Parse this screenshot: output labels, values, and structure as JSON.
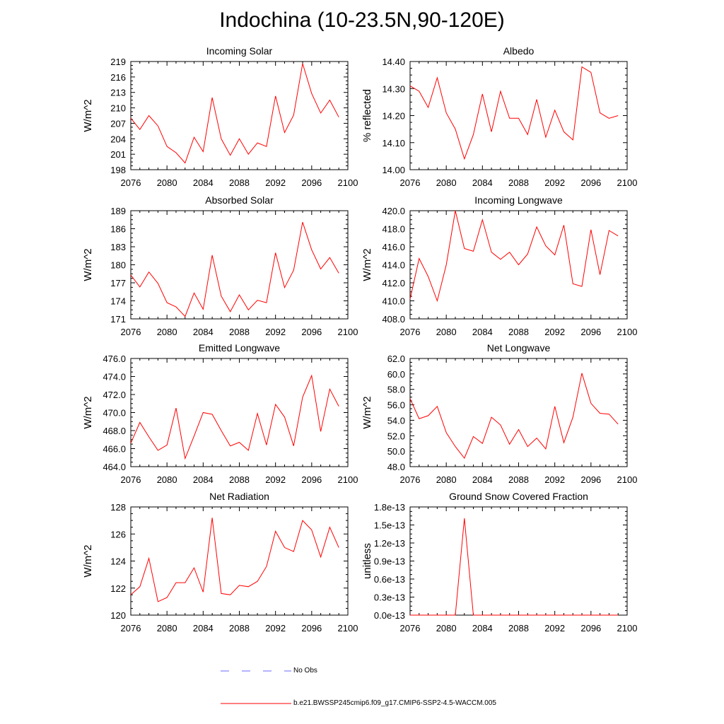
{
  "page": {
    "title": "Indochina (10-23.5N,90-120E)"
  },
  "legend": {
    "obs_label": "No Obs",
    "obs_color": "#6a6aff",
    "model_label": "b.e21.BWSSP245cmip6.f09_g17.CMIP6-SSP2-4.5-WACCM.005",
    "model_color": "#ff0000"
  },
  "chart_data": [
    {
      "type": "line",
      "title": "Incoming Solar",
      "xlabel": "",
      "ylabel": "W/m^2",
      "xlim": [
        2076,
        2100
      ],
      "ylim": [
        198,
        219
      ],
      "xticks": [
        2076,
        2080,
        2084,
        2088,
        2092,
        2096,
        2100
      ],
      "xtick_labels": [
        "2076",
        "2080",
        "2084",
        "2088",
        "2092",
        "2096",
        "2100"
      ],
      "yticks": [
        198,
        201,
        204,
        207,
        210,
        213,
        216,
        219
      ],
      "ytick_labels": [
        "198",
        "201",
        "204",
        "207",
        "210",
        "213",
        "216",
        "219"
      ],
      "x": [
        2076,
        2077,
        2078,
        2079,
        2080,
        2081,
        2082,
        2083,
        2084,
        2085,
        2086,
        2087,
        2088,
        2089,
        2090,
        2091,
        2092,
        2093,
        2094,
        2095,
        2096,
        2097,
        2098,
        2099
      ],
      "series": [
        {
          "name": "b.e21.BWSSP245cmip6.f09_g17.CMIP6-SSP2-4.5-WACCM.005",
          "values": [
            208.0,
            205.8,
            208.5,
            206.5,
            202.5,
            201.3,
            199.3,
            204.3,
            201.5,
            212.0,
            204.0,
            200.8,
            204.0,
            201.0,
            203.2,
            202.5,
            212.3,
            205.2,
            208.6,
            218.6,
            212.8,
            209.0,
            211.5,
            208.2
          ]
        }
      ]
    },
    {
      "type": "line",
      "title": "Albedo",
      "xlabel": "",
      "ylabel": "% reflected",
      "xlim": [
        2076,
        2100
      ],
      "ylim": [
        14.0,
        14.4
      ],
      "xticks": [
        2076,
        2080,
        2084,
        2088,
        2092,
        2096,
        2100
      ],
      "xtick_labels": [
        "2076",
        "2080",
        "2084",
        "2088",
        "2092",
        "2096",
        "2100"
      ],
      "yticks": [
        14.0,
        14.1,
        14.2,
        14.3,
        14.4
      ],
      "ytick_labels": [
        "14.00",
        "14.10",
        "14.20",
        "14.30",
        "14.40"
      ],
      "x": [
        2076,
        2077,
        2078,
        2079,
        2080,
        2081,
        2082,
        2083,
        2084,
        2085,
        2086,
        2087,
        2088,
        2089,
        2090,
        2091,
        2092,
        2093,
        2094,
        2095,
        2096,
        2097,
        2098,
        2099
      ],
      "series": [
        {
          "name": "b.e21.BWSSP245cmip6.f09_g17.CMIP6-SSP2-4.5-WACCM.005",
          "values": [
            14.31,
            14.29,
            14.23,
            14.34,
            14.21,
            14.15,
            14.04,
            14.13,
            14.28,
            14.14,
            14.29,
            14.19,
            14.19,
            14.13,
            14.26,
            14.12,
            14.22,
            14.14,
            14.11,
            14.38,
            14.36,
            14.21,
            14.19,
            14.2
          ]
        }
      ]
    },
    {
      "type": "line",
      "title": "Absorbed Solar",
      "xlabel": "",
      "ylabel": "W/m^2",
      "xlim": [
        2076,
        2100
      ],
      "ylim": [
        171,
        189
      ],
      "xticks": [
        2076,
        2080,
        2084,
        2088,
        2092,
        2096,
        2100
      ],
      "xtick_labels": [
        "2076",
        "2080",
        "2084",
        "2088",
        "2092",
        "2096",
        "2100"
      ],
      "yticks": [
        171,
        174,
        177,
        180,
        183,
        186,
        189
      ],
      "ytick_labels": [
        "171",
        "174",
        "177",
        "180",
        "183",
        "186",
        "189"
      ],
      "x": [
        2076,
        2077,
        2078,
        2079,
        2080,
        2081,
        2082,
        2083,
        2084,
        2085,
        2086,
        2087,
        2088,
        2089,
        2090,
        2091,
        2092,
        2093,
        2094,
        2095,
        2096,
        2097,
        2098,
        2099
      ],
      "series": [
        {
          "name": "b.e21.BWSSP245cmip6.f09_g17.CMIP6-SSP2-4.5-WACCM.005",
          "values": [
            178.3,
            176.3,
            178.8,
            176.9,
            173.7,
            173.0,
            171.4,
            175.3,
            172.6,
            181.6,
            174.8,
            172.2,
            175.0,
            172.5,
            174.1,
            173.7,
            182.0,
            176.2,
            179.1,
            187.1,
            182.5,
            179.3,
            181.2,
            178.6
          ]
        }
      ]
    },
    {
      "type": "line",
      "title": "Incoming Longwave",
      "xlabel": "",
      "ylabel": "W/m^2",
      "xlim": [
        2076,
        2100
      ],
      "ylim": [
        408.0,
        420.0
      ],
      "xticks": [
        2076,
        2080,
        2084,
        2088,
        2092,
        2096,
        2100
      ],
      "xtick_labels": [
        "2076",
        "2080",
        "2084",
        "2088",
        "2092",
        "2096",
        "2100"
      ],
      "yticks": [
        408,
        410,
        412,
        414,
        416,
        418,
        420
      ],
      "ytick_labels": [
        "408.0",
        "410.0",
        "412.0",
        "414.0",
        "416.0",
        "418.0",
        "420.0"
      ],
      "x": [
        2076,
        2077,
        2078,
        2079,
        2080,
        2081,
        2082,
        2083,
        2084,
        2085,
        2086,
        2087,
        2088,
        2089,
        2090,
        2091,
        2092,
        2093,
        2094,
        2095,
        2096,
        2097,
        2098,
        2099
      ],
      "series": [
        {
          "name": "b.e21.BWSSP245cmip6.f09_g17.CMIP6-SSP2-4.5-WACCM.005",
          "values": [
            410.2,
            414.7,
            412.7,
            410.0,
            414.0,
            420.0,
            415.8,
            415.5,
            419.0,
            415.4,
            414.6,
            415.4,
            414.0,
            415.2,
            418.2,
            416.1,
            415.1,
            418.4,
            411.9,
            411.6,
            417.9,
            412.9,
            417.8,
            417.2
          ]
        }
      ]
    },
    {
      "type": "line",
      "title": "Emitted Longwave",
      "xlabel": "",
      "ylabel": "W/m^2",
      "xlim": [
        2076,
        2100
      ],
      "ylim": [
        464.0,
        476.0
      ],
      "xticks": [
        2076,
        2080,
        2084,
        2088,
        2092,
        2096,
        2100
      ],
      "xtick_labels": [
        "2076",
        "2080",
        "2084",
        "2088",
        "2092",
        "2096",
        "2100"
      ],
      "yticks": [
        464,
        466,
        468,
        470,
        472,
        474,
        476
      ],
      "ytick_labels": [
        "464.0",
        "466.0",
        "468.0",
        "470.0",
        "472.0",
        "474.0",
        "476.0"
      ],
      "x": [
        2076,
        2077,
        2078,
        2079,
        2080,
        2081,
        2082,
        2083,
        2084,
        2085,
        2086,
        2087,
        2088,
        2089,
        2090,
        2091,
        2092,
        2093,
        2094,
        2095,
        2096,
        2097,
        2098,
        2099
      ],
      "series": [
        {
          "name": "b.e21.BWSSP245cmip6.f09_g17.CMIP6-SSP2-4.5-WACCM.005",
          "values": [
            466.6,
            468.9,
            467.3,
            465.8,
            466.4,
            470.5,
            464.9,
            467.4,
            470.0,
            469.8,
            468.0,
            466.3,
            466.7,
            465.8,
            469.9,
            466.4,
            470.9,
            469.5,
            466.3,
            471.7,
            474.1,
            467.9,
            472.6,
            470.7
          ]
        }
      ]
    },
    {
      "type": "line",
      "title": "Net Longwave",
      "xlabel": "",
      "ylabel": "W/m^2",
      "xlim": [
        2076,
        2100
      ],
      "ylim": [
        48.0,
        62.0
      ],
      "xticks": [
        2076,
        2080,
        2084,
        2088,
        2092,
        2096,
        2100
      ],
      "xtick_labels": [
        "2076",
        "2080",
        "2084",
        "2088",
        "2092",
        "2096",
        "2100"
      ],
      "yticks": [
        48,
        50,
        52,
        54,
        56,
        58,
        60,
        62
      ],
      "ytick_labels": [
        "48.0",
        "50.0",
        "52.0",
        "54.0",
        "56.0",
        "58.0",
        "60.0",
        "62.0"
      ],
      "x": [
        2076,
        2077,
        2078,
        2079,
        2080,
        2081,
        2082,
        2083,
        2084,
        2085,
        2086,
        2087,
        2088,
        2089,
        2090,
        2091,
        2092,
        2093,
        2094,
        2095,
        2096,
        2097,
        2098,
        2099
      ],
      "series": [
        {
          "name": "b.e21.BWSSP245cmip6.f09_g17.CMIP6-SSP2-4.5-WACCM.005",
          "values": [
            56.8,
            54.2,
            54.6,
            55.8,
            52.4,
            50.6,
            49.1,
            51.9,
            51.0,
            54.4,
            53.4,
            50.9,
            52.8,
            50.6,
            51.7,
            50.3,
            55.8,
            51.1,
            54.4,
            60.1,
            56.2,
            54.9,
            54.8,
            53.5
          ]
        }
      ]
    },
    {
      "type": "line",
      "title": "Net Radiation",
      "xlabel": "",
      "ylabel": "W/m^2",
      "xlim": [
        2076,
        2100
      ],
      "ylim": [
        120,
        128
      ],
      "xticks": [
        2076,
        2080,
        2084,
        2088,
        2092,
        2096,
        2100
      ],
      "xtick_labels": [
        "2076",
        "2080",
        "2084",
        "2088",
        "2092",
        "2096",
        "2100"
      ],
      "yticks": [
        120,
        122,
        124,
        126,
        128
      ],
      "ytick_labels": [
        "120",
        "122",
        "124",
        "126",
        "128"
      ],
      "x": [
        2076,
        2077,
        2078,
        2079,
        2080,
        2081,
        2082,
        2083,
        2084,
        2085,
        2086,
        2087,
        2088,
        2089,
        2090,
        2091,
        2092,
        2093,
        2094,
        2095,
        2096,
        2097,
        2098,
        2099
      ],
      "series": [
        {
          "name": "b.e21.BWSSP245cmip6.f09_g17.CMIP6-SSP2-4.5-WACCM.005",
          "values": [
            121.5,
            122.1,
            124.2,
            121.0,
            121.3,
            122.4,
            122.4,
            123.5,
            121.7,
            127.2,
            121.6,
            121.5,
            122.2,
            122.1,
            122.5,
            123.6,
            126.2,
            125.0,
            124.7,
            127.0,
            126.3,
            124.3,
            126.5,
            125.0
          ]
        }
      ]
    },
    {
      "type": "line",
      "title": "Ground Snow Covered Fraction",
      "xlabel": "",
      "ylabel": "unitless",
      "xlim": [
        2076,
        2100
      ],
      "ylim": [
        0.0,
        1.8e-13
      ],
      "xticks": [
        2076,
        2080,
        2084,
        2088,
        2092,
        2096,
        2100
      ],
      "xtick_labels": [
        "2076",
        "2080",
        "2084",
        "2088",
        "2092",
        "2096",
        "2100"
      ],
      "yticks": [
        0.0,
        3e-14,
        6e-14,
        9e-14,
        1.2e-13,
        1.5e-13,
        1.8e-13
      ],
      "ytick_labels": [
        "0.0e-13",
        "0.3e-13",
        "0.6e-13",
        "0.9e-13",
        "1.2e-13",
        "1.5e-13",
        "1.8e-13"
      ],
      "x": [
        2076,
        2077,
        2078,
        2079,
        2080,
        2081,
        2082,
        2083,
        2084,
        2085,
        2086,
        2087,
        2088,
        2089,
        2090,
        2091,
        2092,
        2093,
        2094,
        2095,
        2096,
        2097,
        2098,
        2099
      ],
      "series": [
        {
          "name": "b.e21.BWSSP245cmip6.f09_g17.CMIP6-SSP2-4.5-WACCM.005",
          "values": [
            0,
            0,
            0,
            0,
            0,
            0,
            1.61e-13,
            0,
            0,
            0,
            0,
            0,
            0,
            0,
            0,
            0,
            0,
            0,
            0,
            0,
            0,
            0,
            0,
            0
          ]
        }
      ]
    }
  ]
}
